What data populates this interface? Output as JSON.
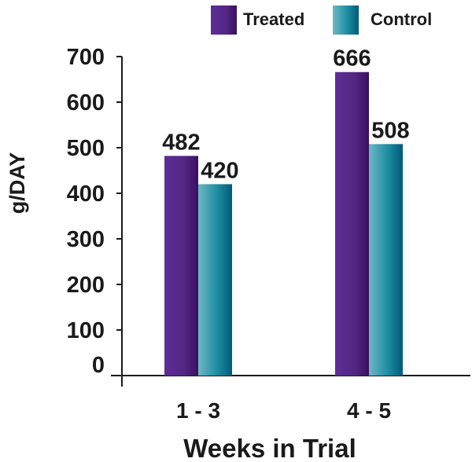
{
  "chart_data": {
    "type": "bar",
    "title": "",
    "xlabel": "Weeks in Trial",
    "ylabel": "g/DAY",
    "categories": [
      "1 - 3",
      "4 - 5"
    ],
    "series": [
      {
        "name": "Treated",
        "values": [
          482,
          666
        ],
        "color_light": "#5e2d96",
        "color_dark": "#3a0f5e"
      },
      {
        "name": "Control",
        "values": [
          420,
          508
        ],
        "color_light": "#6bb3bf",
        "color_dark": "#005f7a"
      }
    ],
    "ylim": [
      0,
      700
    ],
    "yticks": [
      0,
      100,
      200,
      300,
      400,
      500,
      600,
      700
    ],
    "grid": false,
    "legend_position": "top-right",
    "data_labels": true
  }
}
